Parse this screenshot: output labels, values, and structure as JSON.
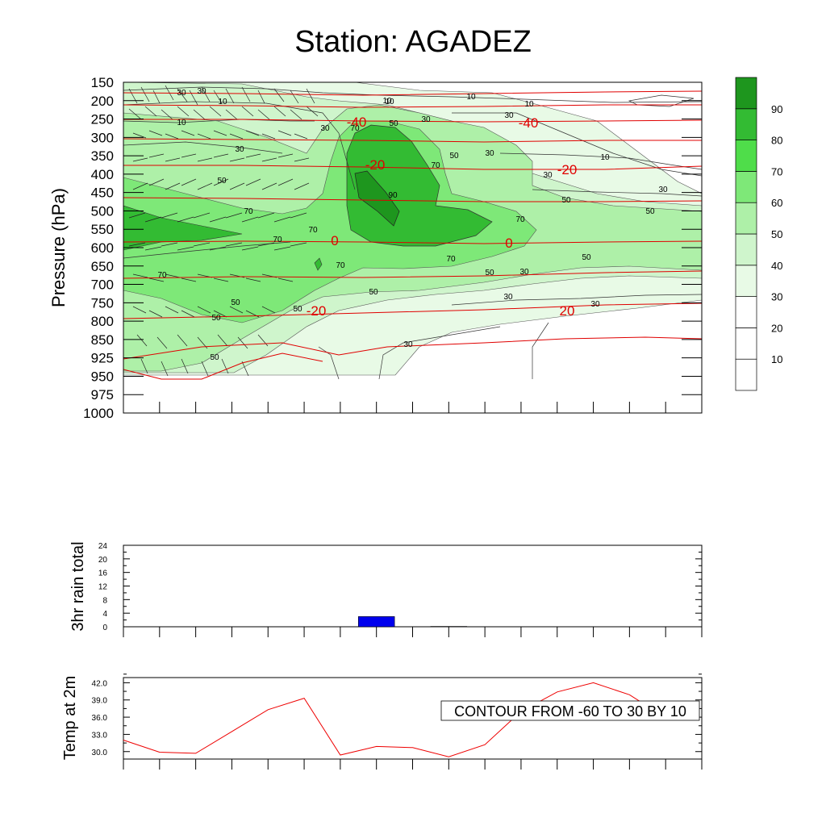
{
  "title": "Station: AGADEZ",
  "chart_data": [
    {
      "type": "heatmap",
      "ylabel": "Pressure (hPa)",
      "y_ticks": [
        150,
        200,
        250,
        300,
        350,
        400,
        450,
        500,
        550,
        600,
        650,
        700,
        750,
        800,
        850,
        925,
        950,
        975,
        1000
      ],
      "x_steps": 16,
      "colorbar": {
        "levels": [
          10,
          20,
          30,
          40,
          50,
          60,
          70,
          80,
          90
        ],
        "colors": [
          "#ffffff",
          "#ffffff",
          "#ffffff",
          "#e8fae6",
          "#cff5cc",
          "#aef0a8",
          "#7ee878",
          "#4fdd4a",
          "#33bb33",
          "#1e961e"
        ]
      },
      "contour_labels_black": [
        "30",
        "30",
        "10",
        "10",
        "10",
        "10",
        "30",
        "10",
        "30",
        "30",
        "10",
        "30",
        "30",
        "50",
        "30",
        "10",
        "30",
        "30",
        "70",
        "50",
        "50",
        "70",
        "90",
        "70",
        "50",
        "50",
        "70",
        "70",
        "70",
        "70",
        "70",
        "50",
        "70",
        "50",
        "50",
        "50",
        "30",
        "30",
        "50",
        "50",
        "30",
        "50"
      ],
      "contour_labels_red": [
        "-40",
        "-40",
        "-20",
        "-20",
        "0",
        "0",
        "-20",
        "20"
      ]
    },
    {
      "type": "bar",
      "ylabel": "3hr rain total",
      "y_ticks": [
        "24",
        "20",
        "16",
        "12",
        "8",
        "4",
        "0"
      ],
      "ylim": [
        0,
        24
      ],
      "x_steps": 16,
      "values": [
        0,
        0,
        0,
        0,
        0,
        0,
        3.0,
        0,
        0.1,
        0,
        0,
        0,
        0,
        0,
        0,
        0
      ],
      "bar_color": "#0000ee"
    },
    {
      "type": "line",
      "ylabel": "Temp at 2m",
      "y_ticks": [
        "42.0",
        "39.0",
        "36.0",
        "33.0",
        "30.0"
      ],
      "ylim": [
        28.7,
        42.9
      ],
      "x_steps": 16,
      "values": [
        32.0,
        29.9,
        29.7,
        33.5,
        37.3,
        39.3,
        29.4,
        30.9,
        30.7,
        29.1,
        31.2,
        37.0,
        40.4,
        42.0,
        39.9,
        35.9
      ],
      "line_color": "#ee0000",
      "annotation": "CONTOUR FROM -60 TO 30 BY 10"
    }
  ]
}
